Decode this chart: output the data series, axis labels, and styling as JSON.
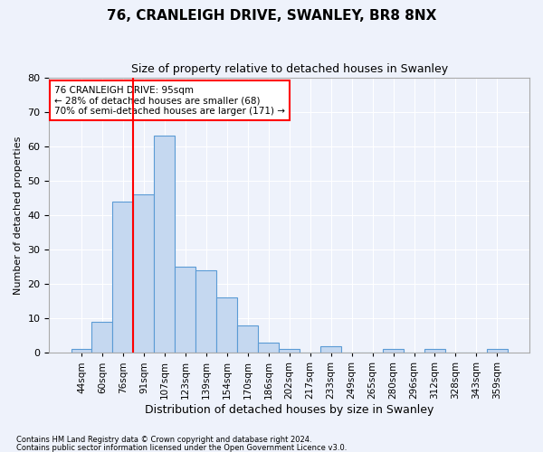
{
  "title1": "76, CRANLEIGH DRIVE, SWANLEY, BR8 8NX",
  "title2": "Size of property relative to detached houses in Swanley",
  "xlabel": "Distribution of detached houses by size in Swanley",
  "ylabel": "Number of detached properties",
  "categories": [
    "44sqm",
    "60sqm",
    "76sqm",
    "91sqm",
    "107sqm",
    "123sqm",
    "139sqm",
    "154sqm",
    "170sqm",
    "186sqm",
    "202sqm",
    "217sqm",
    "233sqm",
    "249sqm",
    "265sqm",
    "280sqm",
    "296sqm",
    "312sqm",
    "328sqm",
    "343sqm",
    "359sqm"
  ],
  "values": [
    1,
    9,
    44,
    46,
    63,
    25,
    24,
    16,
    8,
    3,
    1,
    0,
    2,
    0,
    0,
    1,
    0,
    1,
    0,
    0,
    1
  ],
  "bar_color": "#c5d8f0",
  "bar_edge_color": "#5b9bd5",
  "vline_x_index": 3,
  "vline_color": "red",
  "annotation_text": "76 CRANLEIGH DRIVE: 95sqm\n← 28% of detached houses are smaller (68)\n70% of semi-detached houses are larger (171) →",
  "annotation_box_color": "white",
  "annotation_box_edge_color": "red",
  "ylim": [
    0,
    80
  ],
  "yticks": [
    0,
    10,
    20,
    30,
    40,
    50,
    60,
    70,
    80
  ],
  "footer1": "Contains HM Land Registry data © Crown copyright and database right 2024.",
  "footer2": "Contains public sector information licensed under the Open Government Licence v3.0.",
  "bg_color": "#eef2fb",
  "grid_color": "white"
}
